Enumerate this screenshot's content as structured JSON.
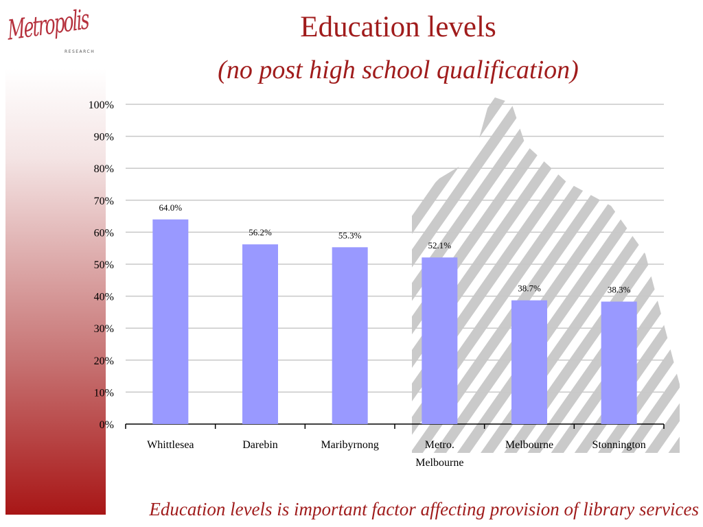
{
  "slide": {
    "title": "Education levels",
    "subtitle": "(no post high school qualification)",
    "footer": "Education levels is important factor affecting provision of  library services",
    "logo": {
      "script": "Metropolis",
      "sub": "RESEARCH"
    }
  },
  "colors": {
    "accent": "#a01c1c",
    "bar": "#9999ff",
    "grid": "#c8c8c8",
    "axis": "#000000"
  },
  "chart_data": {
    "type": "bar",
    "categories": [
      "Whittlesea",
      "Darebin",
      "Maribyrnong",
      "Metro. Melbourne",
      "Melbourne",
      "Stonnington"
    ],
    "category_lines": [
      [
        "Whittlesea"
      ],
      [
        "Darebin"
      ],
      [
        "Maribyrnong"
      ],
      [
        "Metro.",
        "Melbourne"
      ],
      [
        "Melbourne"
      ],
      [
        "Stonnington"
      ]
    ],
    "values": [
      64.0,
      56.2,
      55.3,
      52.1,
      38.7,
      38.3
    ],
    "data_labels": [
      "64.0%",
      "56.2%",
      "55.3%",
      "52.1%",
      "38.7%",
      "38.3%"
    ],
    "yticks": [
      0,
      10,
      20,
      30,
      40,
      50,
      60,
      70,
      80,
      90,
      100
    ],
    "ytick_labels": [
      "0%",
      "10%",
      "20%",
      "30%",
      "40%",
      "50%",
      "60%",
      "70%",
      "80%",
      "90%",
      "100%"
    ],
    "ylim": [
      0,
      100
    ],
    "grid": true,
    "legend": "none"
  }
}
